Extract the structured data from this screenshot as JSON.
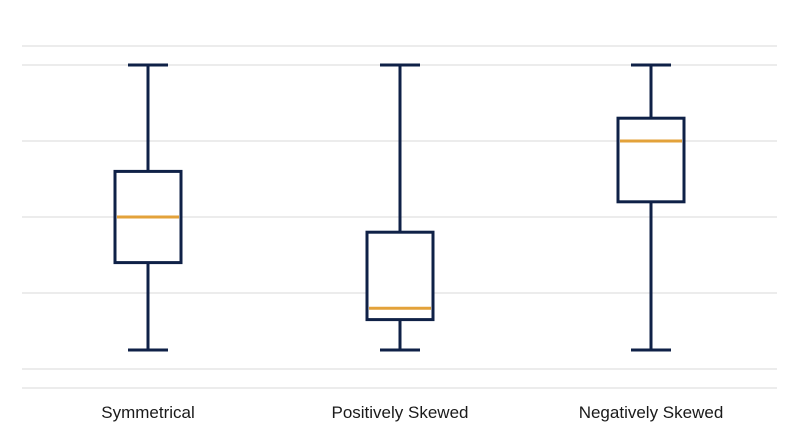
{
  "chart_data": {
    "type": "box",
    "categories": [
      "Symmetrical",
      "Positively Skewed",
      "Negatively Skewed"
    ],
    "boxes": [
      {
        "category": "Symmetrical",
        "min": 0.5,
        "q1": 2.8,
        "median": 4.0,
        "q3": 5.2,
        "max": 8.0
      },
      {
        "category": "Positively Skewed",
        "min": 0.5,
        "q1": 1.3,
        "median": 1.6,
        "q3": 3.6,
        "max": 8.0
      },
      {
        "category": "Negatively Skewed",
        "min": 0.5,
        "q1": 4.4,
        "median": 6.0,
        "q3": 6.6,
        "max": 8.0
      }
    ],
    "ylim": [
      -0.5,
      8.5
    ],
    "yticks": [
      0,
      2,
      4,
      6,
      8
    ],
    "grid": true,
    "title": "",
    "xlabel": "",
    "ylabel": "",
    "colors": {
      "box_stroke": "#0f2147",
      "median": "#e3a23a",
      "grid": "#d9d9d9"
    }
  }
}
